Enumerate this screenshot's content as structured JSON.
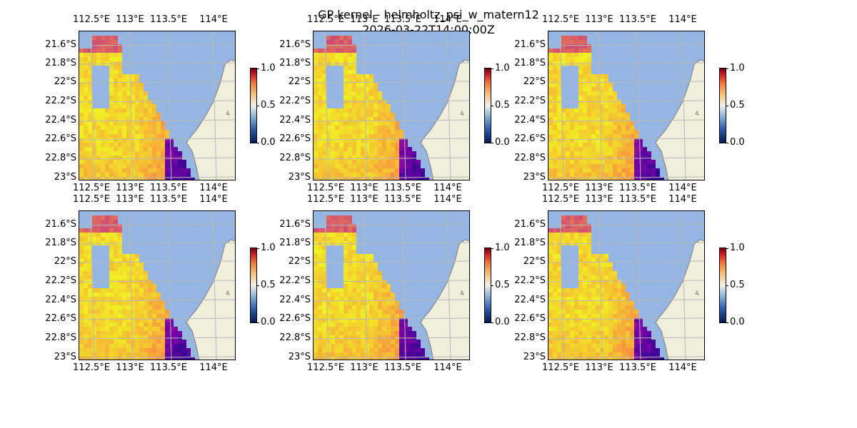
{
  "figure": {
    "title": "GP kernel - helmholtz_psi_w_matern12\n2026-03-22T14:00:00Z",
    "colors": {
      "ocean": "#95b5e3",
      "land": "#efefdc",
      "coast": "#888888",
      "grid": "#b8b8b8"
    }
  },
  "axes": {
    "lon_ticks": [
      "112.5°E",
      "113°E",
      "113.5°E",
      "114°E"
    ],
    "lat_ticks": [
      "21.6°S",
      "21.8°S",
      "22°S",
      "22.2°S",
      "22.4°S",
      "22.6°S",
      "22.8°S",
      "23°S"
    ]
  },
  "colorbar": {
    "ticks": [
      "0.0",
      "0.5",
      "1.0"
    ],
    "range": [
      0.0,
      1.0
    ]
  },
  "panels": [
    {
      "row": 1,
      "col": 1
    },
    {
      "row": 1,
      "col": 2
    },
    {
      "row": 1,
      "col": 3
    },
    {
      "row": 2,
      "col": 1
    },
    {
      "row": 2,
      "col": 2
    },
    {
      "row": 2,
      "col": 3
    }
  ]
}
